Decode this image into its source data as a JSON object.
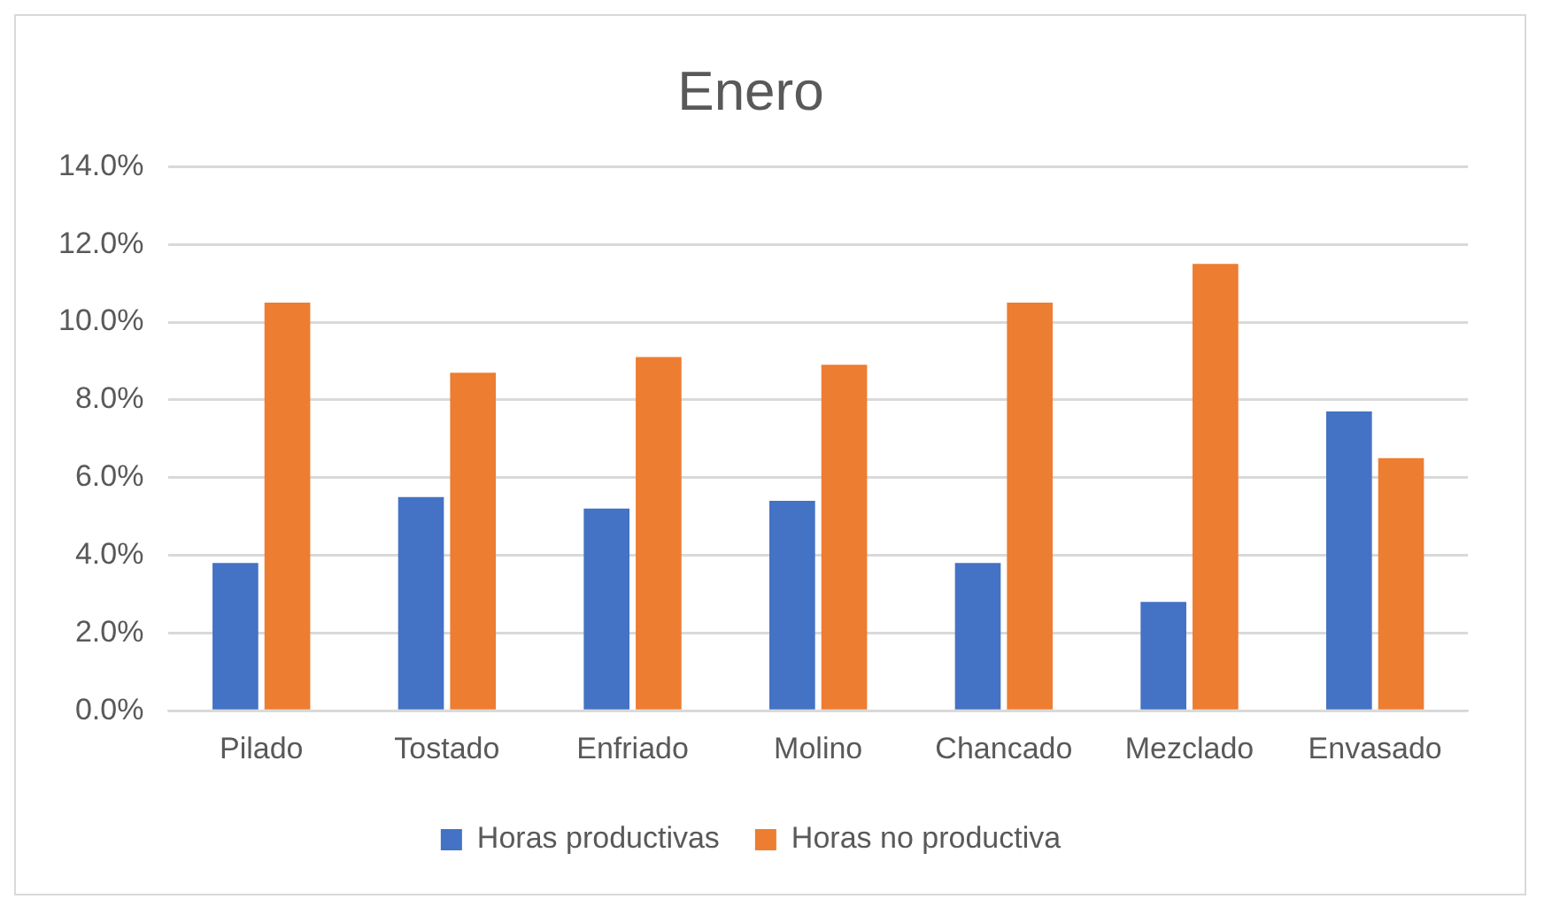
{
  "chart_data": {
    "type": "bar",
    "title": "Enero",
    "categories": [
      "Pilado",
      "Tostado",
      "Enfriado",
      "Molino",
      "Chancado",
      "Mezclado",
      "Envasado"
    ],
    "series": [
      {
        "name": "Horas productivas",
        "color": "#4472c4",
        "values": [
          3.8,
          5.5,
          5.2,
          5.4,
          3.8,
          2.8,
          7.7
        ]
      },
      {
        "name": "Horas no productiva",
        "color": "#ed7d31",
        "values": [
          10.5,
          8.7,
          9.1,
          8.9,
          10.5,
          11.5,
          6.5
        ]
      }
    ],
    "ylim": [
      0,
      14
    ],
    "yticks": [
      {
        "value": 0,
        "label": "0.0%"
      },
      {
        "value": 2,
        "label": "2.0%"
      },
      {
        "value": 4,
        "label": "4.0%"
      },
      {
        "value": 6,
        "label": "6.0%"
      },
      {
        "value": 8,
        "label": "8.0%"
      },
      {
        "value": 10,
        "label": "10.0%"
      },
      {
        "value": 12,
        "label": "12.0%"
      },
      {
        "value": 14,
        "label": "14.0%"
      }
    ],
    "grid": "y",
    "legend": "bottom"
  }
}
